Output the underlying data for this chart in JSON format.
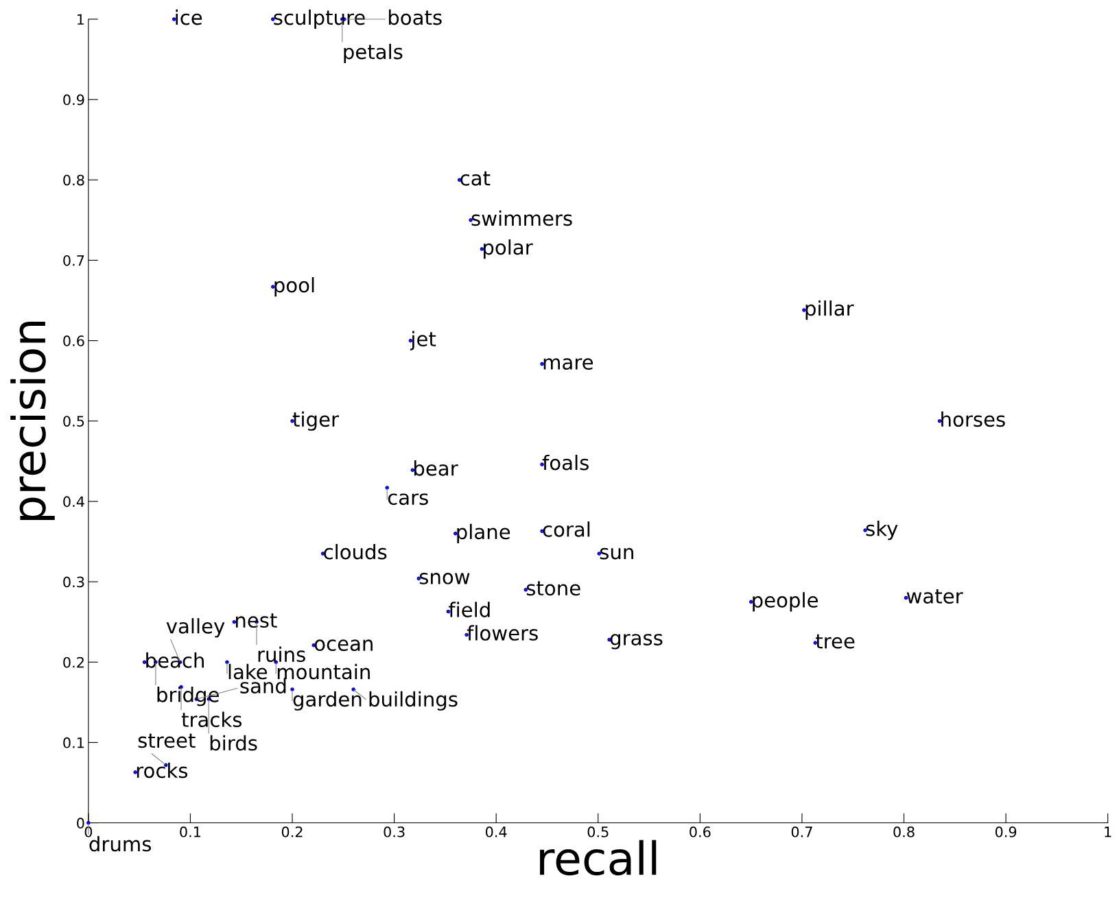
{
  "chart_data": {
    "type": "scatter",
    "xlabel": "recall",
    "ylabel": "precision",
    "xlim": [
      0,
      1
    ],
    "ylim": [
      0,
      1
    ],
    "xticks": [
      0,
      0.1,
      0.2,
      0.3,
      0.4,
      0.5,
      0.6,
      0.7,
      0.8,
      0.9,
      1
    ],
    "yticks": [
      0,
      0.1,
      0.2,
      0.3,
      0.4,
      0.5,
      0.6,
      0.7,
      0.8,
      0.9,
      1
    ],
    "grid": false,
    "legend": false,
    "marker": "circle",
    "series": [
      {
        "color": "#0000ff",
        "x": [
          0.084,
          0.181,
          0.249,
          0.251,
          0.364,
          0.375,
          0.386,
          0.181,
          0.702,
          0.316,
          0.445,
          0.2,
          0.835,
          0.318,
          0.445,
          0.293,
          0.36,
          0.445,
          0.762,
          0.23,
          0.501,
          0.324,
          0.429,
          0.65,
          0.802,
          0.353,
          0.143,
          0.165,
          0.371,
          0.511,
          0.713,
          0.221,
          0.055,
          0.066,
          0.09,
          0.136,
          0.184,
          0.091,
          0.106,
          0.118,
          0.2,
          0.26,
          0.046,
          0.076,
          0.0
        ],
        "values": [
          1,
          1,
          1,
          1,
          0.8,
          0.75,
          0.714,
          0.667,
          0.638,
          0.6,
          0.571,
          0.5,
          0.5,
          0.439,
          0.446,
          0.417,
          0.36,
          0.363,
          0.364,
          0.335,
          0.335,
          0.304,
          0.29,
          0.275,
          0.28,
          0.263,
          0.25,
          0.25,
          0.234,
          0.228,
          0.224,
          0.221,
          0.2,
          0.2,
          0.2,
          0.2,
          0.2,
          0.169,
          0.154,
          0.154,
          0.166,
          0.166,
          0.063,
          0.072,
          0.0
        ]
      }
    ],
    "annotations": [
      {
        "text": "ice",
        "x": 0.084,
        "y": 1
      },
      {
        "text": "sculpture",
        "x": 0.181,
        "y": 1
      },
      {
        "text": "petals",
        "x": 0.249,
        "y": 1
      },
      {
        "text": "boats",
        "x": 0.251,
        "y": 1
      },
      {
        "text": "cat",
        "x": 0.364,
        "y": 0.8
      },
      {
        "text": "swimmers",
        "x": 0.375,
        "y": 0.75
      },
      {
        "text": "polar",
        "x": 0.386,
        "y": 0.714
      },
      {
        "text": "pool",
        "x": 0.181,
        "y": 0.667
      },
      {
        "text": "pillar",
        "x": 0.702,
        "y": 0.638
      },
      {
        "text": "jet",
        "x": 0.316,
        "y": 0.6
      },
      {
        "text": "mare",
        "x": 0.445,
        "y": 0.571
      },
      {
        "text": "tiger",
        "x": 0.2,
        "y": 0.5
      },
      {
        "text": "horses",
        "x": 0.835,
        "y": 0.5
      },
      {
        "text": "bear",
        "x": 0.318,
        "y": 0.439
      },
      {
        "text": "foals",
        "x": 0.445,
        "y": 0.446
      },
      {
        "text": "cars",
        "x": 0.293,
        "y": 0.417
      },
      {
        "text": "plane",
        "x": 0.36,
        "y": 0.36
      },
      {
        "text": "coral",
        "x": 0.445,
        "y": 0.363
      },
      {
        "text": "sky",
        "x": 0.762,
        "y": 0.364
      },
      {
        "text": "clouds",
        "x": 0.23,
        "y": 0.335
      },
      {
        "text": "sun",
        "x": 0.501,
        "y": 0.335
      },
      {
        "text": "snow",
        "x": 0.324,
        "y": 0.304
      },
      {
        "text": "stone",
        "x": 0.429,
        "y": 0.29
      },
      {
        "text": "people",
        "x": 0.65,
        "y": 0.275
      },
      {
        "text": "water",
        "x": 0.802,
        "y": 0.28
      },
      {
        "text": "field",
        "x": 0.353,
        "y": 0.263
      },
      {
        "text": "nest",
        "x": 0.143,
        "y": 0.25
      },
      {
        "text": "ruins",
        "x": 0.165,
        "y": 0.25
      },
      {
        "text": "flowers",
        "x": 0.371,
        "y": 0.234
      },
      {
        "text": "grass",
        "x": 0.511,
        "y": 0.228
      },
      {
        "text": "tree",
        "x": 0.713,
        "y": 0.224
      },
      {
        "text": "ocean",
        "x": 0.221,
        "y": 0.221
      },
      {
        "text": "beach",
        "x": 0.055,
        "y": 0.2
      },
      {
        "text": "bridge",
        "x": 0.066,
        "y": 0.2
      },
      {
        "text": "valley",
        "x": 0.09,
        "y": 0.2
      },
      {
        "text": "lake",
        "x": 0.136,
        "y": 0.2
      },
      {
        "text": "mountain",
        "x": 0.184,
        "y": 0.2
      },
      {
        "text": "tracks",
        "x": 0.091,
        "y": 0.169
      },
      {
        "text": "sand",
        "x": 0.106,
        "y": 0.154
      },
      {
        "text": "birds",
        "x": 0.118,
        "y": 0.154
      },
      {
        "text": "garden",
        "x": 0.2,
        "y": 0.166
      },
      {
        "text": "buildings",
        "x": 0.26,
        "y": 0.166
      },
      {
        "text": "rocks",
        "x": 0.046,
        "y": 0.063
      },
      {
        "text": "street",
        "x": 0.076,
        "y": 0.072
      },
      {
        "text": "drums",
        "x": 0.0,
        "y": 0.0
      }
    ]
  }
}
